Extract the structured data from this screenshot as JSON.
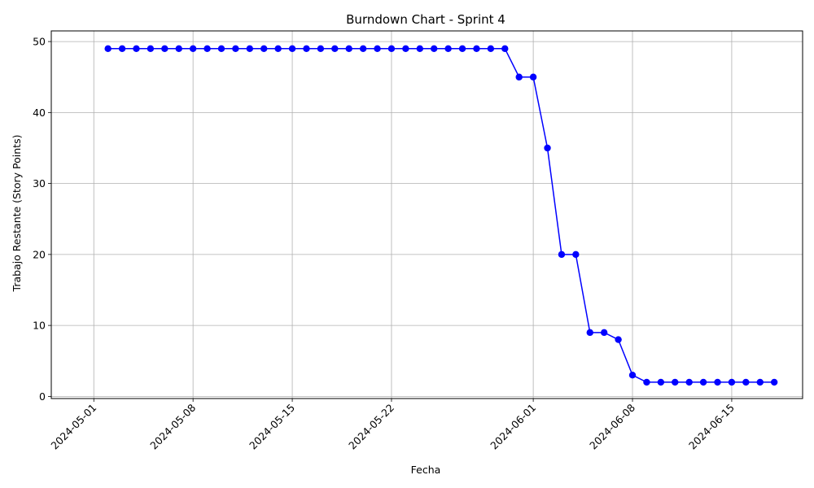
{
  "chart_data": {
    "type": "line",
    "title": "Burndown Chart - Sprint 4",
    "xlabel": "Fecha",
    "ylabel": "Trabajo Restante (Story Points)",
    "grid": true,
    "line_color": "#0000ff",
    "x_ticks": [
      "2024-05-01",
      "2024-05-08",
      "2024-05-15",
      "2024-05-22",
      "2024-06-01",
      "2024-06-08",
      "2024-06-15"
    ],
    "y_ticks": [
      0,
      10,
      20,
      30,
      40,
      50
    ],
    "xlim": [
      "2024-04-28",
      "2024-06-20"
    ],
    "ylim": [
      -0.3,
      51.5
    ],
    "x": [
      "2024-05-02",
      "2024-05-03",
      "2024-05-04",
      "2024-05-05",
      "2024-05-06",
      "2024-05-07",
      "2024-05-08",
      "2024-05-09",
      "2024-05-10",
      "2024-05-11",
      "2024-05-12",
      "2024-05-13",
      "2024-05-14",
      "2024-05-15",
      "2024-05-16",
      "2024-05-17",
      "2024-05-18",
      "2024-05-19",
      "2024-05-20",
      "2024-05-21",
      "2024-05-22",
      "2024-05-23",
      "2024-05-24",
      "2024-05-25",
      "2024-05-26",
      "2024-05-27",
      "2024-05-28",
      "2024-05-29",
      "2024-05-30",
      "2024-05-31",
      "2024-06-01",
      "2024-06-02",
      "2024-06-03",
      "2024-06-04",
      "2024-06-05",
      "2024-06-06",
      "2024-06-07",
      "2024-06-08",
      "2024-06-09",
      "2024-06-10",
      "2024-06-11",
      "2024-06-12",
      "2024-06-13",
      "2024-06-14",
      "2024-06-15",
      "2024-06-16",
      "2024-06-17",
      "2024-06-18"
    ],
    "series": [
      {
        "values": [
          49,
          49,
          49,
          49,
          49,
          49,
          49,
          49,
          49,
          49,
          49,
          49,
          49,
          49,
          49,
          49,
          49,
          49,
          49,
          49,
          49,
          49,
          49,
          49,
          49,
          49,
          49,
          49,
          49,
          45,
          45,
          35,
          20,
          20,
          9,
          9,
          8,
          3,
          2,
          2,
          2,
          2,
          2,
          2,
          2,
          2,
          2,
          2
        ]
      }
    ]
  }
}
